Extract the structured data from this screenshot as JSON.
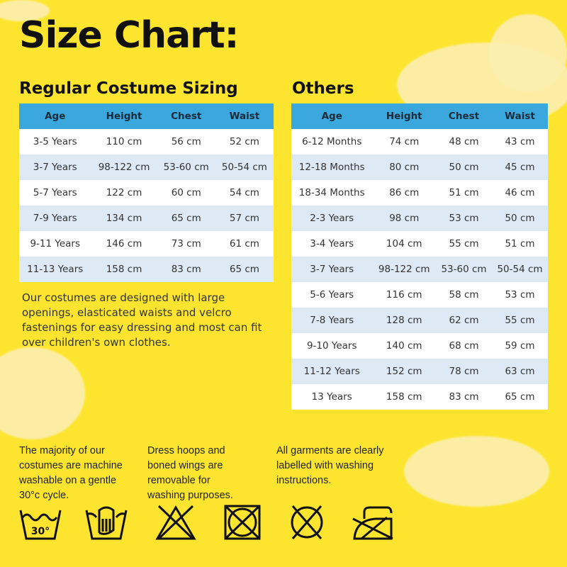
{
  "title": "Size Chart:",
  "regular": {
    "heading": "Regular Costume Sizing",
    "columns": [
      "Age",
      "Height",
      "Chest",
      "Waist"
    ],
    "rows": [
      [
        "3-5 Years",
        "110 cm",
        "56 cm",
        "52 cm"
      ],
      [
        "3-7 Years",
        "98-122 cm",
        "53-60 cm",
        "50-54 cm"
      ],
      [
        "5-7 Years",
        "122 cm",
        "60 cm",
        "54 cm"
      ],
      [
        "7-9 Years",
        "134 cm",
        "65 cm",
        "57 cm"
      ],
      [
        "9-11 Years",
        "146 cm",
        "73 cm",
        "61 cm"
      ],
      [
        "11-13 Years",
        "158 cm",
        "83 cm",
        "65 cm"
      ]
    ]
  },
  "others": {
    "heading": "Others",
    "columns": [
      "Age",
      "Height",
      "Chest",
      "Waist"
    ],
    "rows": [
      [
        "6-12 Months",
        "74 cm",
        "48 cm",
        "43 cm"
      ],
      [
        "12-18 Months",
        "80 cm",
        "50 cm",
        "45 cm"
      ],
      [
        "18-34 Months",
        "86 cm",
        "51 cm",
        "46 cm"
      ],
      [
        "2-3 Years",
        "98 cm",
        "53 cm",
        "50 cm"
      ],
      [
        "3-4 Years",
        "104 cm",
        "55 cm",
        "51 cm"
      ],
      [
        "3-7 Years",
        "98-122 cm",
        "53-60 cm",
        "50-54 cm"
      ],
      [
        "5-6 Years",
        "116 cm",
        "58 cm",
        "53 cm"
      ],
      [
        "7-8 Years",
        "128 cm",
        "62 cm",
        "55 cm"
      ],
      [
        "9-10 Years",
        "140 cm",
        "68 cm",
        "59 cm"
      ],
      [
        "11-12 Years",
        "152 cm",
        "78 cm",
        "63 cm"
      ],
      [
        "13 Years",
        "158 cm",
        "83 cm",
        "65 cm"
      ]
    ]
  },
  "intro": "Our costumes are designed with large openings, elasticated waists and velcro fastenings for easy dressing and most can fit over children's own clothes.",
  "notes": [
    "The majority of our costumes are machine washable on a gentle 30°c cycle.",
    "Dress hoops and boned wings are removable for washing purposes.",
    "All garments are clearly labelled with washing instructions."
  ],
  "icons": {
    "wash_temp": "30°",
    "names": [
      "wash-30-icon",
      "hand-wash-icon",
      "do-not-bleach-icon",
      "do-not-tumble-dry-icon",
      "do-not-dry-clean-icon",
      "do-not-iron-icon"
    ]
  },
  "colors": {
    "background": "#fde52f",
    "header": "#3aa8dc",
    "row_alt": "#dde9f5"
  }
}
